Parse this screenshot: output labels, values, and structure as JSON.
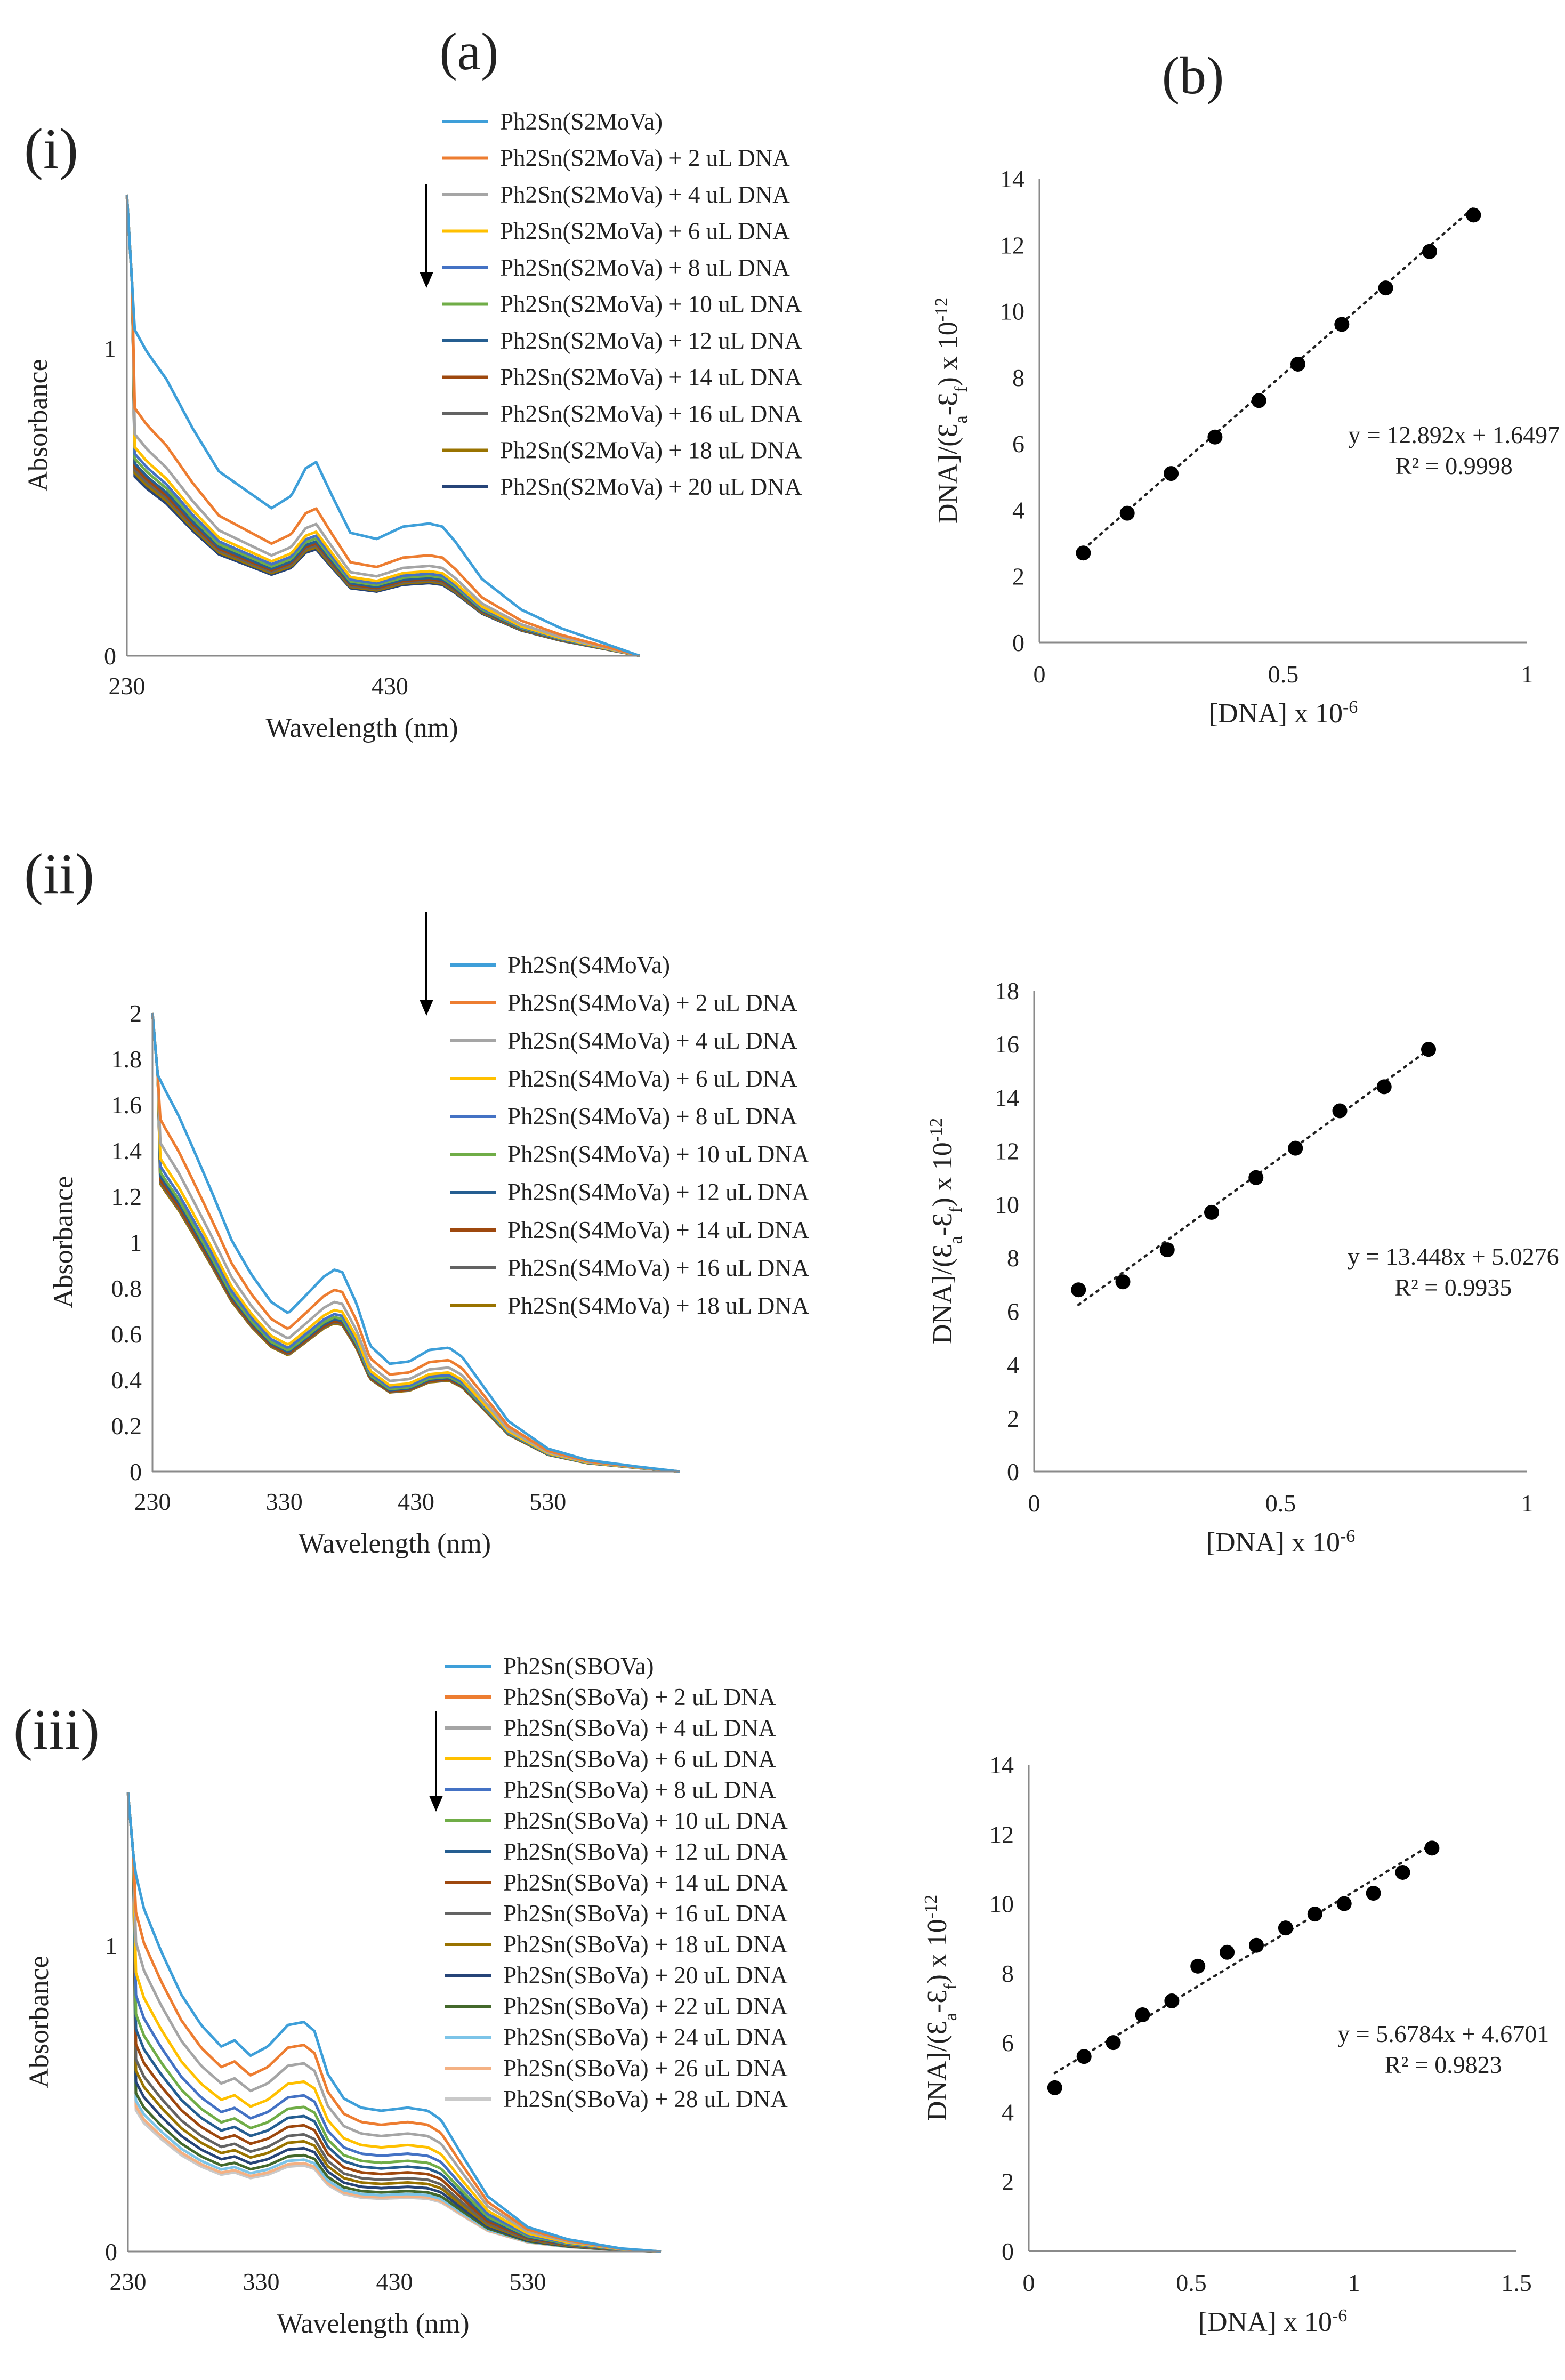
{
  "figure": {
    "col_a_label": "(a)",
    "col_b_label": "(b)",
    "row_labels": [
      "(i)",
      "(ii)",
      "(iii)"
    ]
  },
  "chart_data": [
    {
      "id": "i-a",
      "type": "line",
      "panel": "(i)(a)",
      "xlabel": "Wavelength (nm)",
      "ylabel": "Absorbance",
      "xlim": [
        230,
        620
      ],
      "ylim": [
        0,
        1.5
      ],
      "xticks": [
        230,
        430
      ],
      "yticks": [
        0,
        1
      ],
      "ytick_labels": [
        "0",
        "1"
      ],
      "legend_position": "top-right",
      "arrow": "down",
      "profile": {
        "x": [
          230,
          236,
          245,
          260,
          280,
          300,
          320,
          340,
          355,
          366,
          374,
          385,
          400,
          420,
          440,
          460,
          470,
          480,
          500,
          530,
          560,
          600,
          620
        ],
        "base": [
          1.5,
          1.06,
          0.99,
          0.9,
          0.74,
          0.6,
          0.54,
          0.48,
          0.52,
          0.61,
          0.63,
          0.53,
          0.4,
          0.38,
          0.42,
          0.43,
          0.42,
          0.37,
          0.25,
          0.15,
          0.09,
          0.03,
          0.0
        ]
      },
      "series": [
        {
          "name": "Ph2Sn(S2MoVa)",
          "color": "#3e9fd9",
          "scale": 1.0
        },
        {
          "name": "Ph2Sn(S2MoVa) + 2 uL DNA",
          "color": "#ed7d31",
          "scale": 0.76
        },
        {
          "name": "Ph2Sn(S2MoVa) + 4 uL DNA",
          "color": "#a5a5a5",
          "scale": 0.68
        },
        {
          "name": "Ph2Sn(S2MoVa) + 6 uL DNA",
          "color": "#ffc000",
          "scale": 0.64
        },
        {
          "name": "Ph2Sn(S2MoVa) + 8 uL DNA",
          "color": "#4472c4",
          "scale": 0.62
        },
        {
          "name": "Ph2Sn(S2MoVa) + 10 uL DNA",
          "color": "#70ad47",
          "scale": 0.605
        },
        {
          "name": "Ph2Sn(S2MoVa) + 12 uL DNA",
          "color": "#255e91",
          "scale": 0.59
        },
        {
          "name": "Ph2Sn(S2MoVa) + 14 uL DNA",
          "color": "#9e480e",
          "scale": 0.58
        },
        {
          "name": "Ph2Sn(S2MoVa) + 16 uL DNA",
          "color": "#636363",
          "scale": 0.57
        },
        {
          "name": "Ph2Sn(S2MoVa) + 18 uL DNA",
          "color": "#997300",
          "scale": 0.56
        },
        {
          "name": "Ph2Sn(S2MoVa) + 20 uL DNA",
          "color": "#264478",
          "scale": 0.55
        }
      ]
    },
    {
      "id": "i-b",
      "type": "scatter",
      "panel": "(i)(b)",
      "xlabel": "[DNA] x 10",
      "xlabel_sup": "-6",
      "ylabel_pre": "DNA]/(Ɛ",
      "ylabel_sub1": "a",
      "ylabel_mid": "-Ɛ",
      "ylabel_sub2": "f",
      "ylabel_post": ") x 10",
      "ylabel_sup": "-12",
      "xlim": [
        0,
        1
      ],
      "ylim": [
        0,
        14
      ],
      "xticks": [
        0,
        0.5,
        1
      ],
      "yticks": [
        0,
        2,
        4,
        6,
        8,
        10,
        12,
        14
      ],
      "x": [
        0.09,
        0.18,
        0.27,
        0.36,
        0.45,
        0.53,
        0.62,
        0.71,
        0.8,
        0.89
      ],
      "y": [
        2.7,
        3.9,
        5.1,
        6.2,
        7.3,
        8.4,
        9.6,
        10.7,
        11.8,
        12.9
      ],
      "trendline": {
        "slope": 12.892,
        "intercept": 1.6497,
        "x_range": [
          0.09,
          0.89
        ]
      },
      "equation": "y = 12.892x + 1.6497",
      "r2": "R² = 0.9998"
    },
    {
      "id": "ii-a",
      "type": "line",
      "panel": "(ii)(a)",
      "xlabel": "Wavelength (nm)",
      "ylabel": "Absorbance",
      "xlim": [
        230,
        630
      ],
      "ylim": [
        0,
        2
      ],
      "xticks": [
        230,
        330,
        430,
        530
      ],
      "yticks": [
        0,
        0.2,
        0.4,
        0.6,
        0.8,
        1,
        1.2,
        1.4,
        1.6,
        1.8,
        2
      ],
      "ytick_labels": [
        "0",
        "0.2",
        "0.4",
        "0.6",
        "0.8",
        "1",
        "1.2",
        "1.4",
        "1.6",
        "1.8",
        "2"
      ],
      "legend_position": "top-right",
      "arrow": "down",
      "profile": {
        "x": [
          230,
          234,
          240,
          250,
          260,
          275,
          290,
          305,
          320,
          333,
          345,
          360,
          368,
          374,
          385,
          395,
          410,
          425,
          440,
          455,
          465,
          480,
          500,
          530,
          560,
          600,
          630
        ],
        "base": [
          2.0,
          1.73,
          1.66,
          1.55,
          1.42,
          1.22,
          1.01,
          0.86,
          0.74,
          0.69,
          0.76,
          0.85,
          0.88,
          0.87,
          0.73,
          0.55,
          0.47,
          0.48,
          0.53,
          0.54,
          0.5,
          0.38,
          0.22,
          0.1,
          0.05,
          0.02,
          0.0
        ]
      },
      "series": [
        {
          "name": "Ph2Sn(S4MoVa)",
          "color": "#3e9fd9",
          "scale": 1.0
        },
        {
          "name": "Ph2Sn(S4MoVa) + 2 uL DNA",
          "color": "#ed7d31",
          "scale": 0.9
        },
        {
          "name": "Ph2Sn(S4MoVa) + 4 uL DNA",
          "color": "#a5a5a5",
          "scale": 0.84
        },
        {
          "name": "Ph2Sn(S4MoVa) + 6 uL DNA",
          "color": "#ffc000",
          "scale": 0.8
        },
        {
          "name": "Ph2Sn(S4MoVa) + 8 uL DNA",
          "color": "#4472c4",
          "scale": 0.78
        },
        {
          "name": "Ph2Sn(S4MoVa) + 10 uL DNA",
          "color": "#70ad47",
          "scale": 0.765
        },
        {
          "name": "Ph2Sn(S4MoVa) + 12 uL DNA",
          "color": "#255e91",
          "scale": 0.755
        },
        {
          "name": "Ph2Sn(S4MoVa) + 14 uL DNA",
          "color": "#9e480e",
          "scale": 0.745
        },
        {
          "name": "Ph2Sn(S4MoVa) + 16 uL DNA",
          "color": "#636363",
          "scale": 0.74
        },
        {
          "name": "Ph2Sn(S4MoVa) + 18 uL DNA",
          "color": "#997300",
          "scale": 0.735
        }
      ]
    },
    {
      "id": "ii-b",
      "type": "scatter",
      "panel": "(ii)(b)",
      "xlabel": "[DNA] x 10",
      "xlabel_sup": "-6",
      "ylabel_pre": "DNA]/(Ɛ",
      "ylabel_sub1": "a",
      "ylabel_mid": "-Ɛ",
      "ylabel_sub2": "f",
      "ylabel_post": ") x 10",
      "ylabel_sup": "-12",
      "xlim": [
        0,
        1
      ],
      "ylim": [
        0,
        18
      ],
      "xticks": [
        0,
        0.5,
        1
      ],
      "yticks": [
        0,
        2,
        4,
        6,
        8,
        10,
        12,
        14,
        16,
        18
      ],
      "x": [
        0.09,
        0.18,
        0.27,
        0.36,
        0.45,
        0.53,
        0.62,
        0.71,
        0.8
      ],
      "y": [
        6.8,
        7.1,
        8.3,
        9.7,
        11.0,
        12.1,
        13.5,
        14.4,
        15.8
      ],
      "trendline": {
        "slope": 13.448,
        "intercept": 5.0276,
        "x_range": [
          0.09,
          0.8
        ]
      },
      "equation": "y = 13.448x + 5.0276",
      "r2": "R² = 0.9935"
    },
    {
      "id": "iii-a",
      "type": "line",
      "panel": "(iii)(a)",
      "xlabel": "Wavelength (nm)",
      "ylabel": "Absorbance",
      "xlim": [
        230,
        630
      ],
      "ylim": [
        0,
        1.5
      ],
      "xticks": [
        230,
        330,
        430,
        530
      ],
      "yticks": [
        0,
        1
      ],
      "ytick_labels": [
        "0",
        "1"
      ],
      "legend_position": "top-right",
      "arrow": "down",
      "profile": {
        "x": [
          230,
          235,
          242,
          255,
          270,
          285,
          300,
          310,
          322,
          335,
          350,
          362,
          370,
          380,
          392,
          405,
          420,
          440,
          455,
          465,
          480,
          500,
          530,
          560,
          600,
          630
        ],
        "base": [
          1.5,
          1.25,
          1.12,
          0.98,
          0.84,
          0.74,
          0.67,
          0.69,
          0.64,
          0.67,
          0.74,
          0.75,
          0.72,
          0.58,
          0.5,
          0.47,
          0.46,
          0.47,
          0.46,
          0.43,
          0.32,
          0.18,
          0.08,
          0.04,
          0.01,
          0.0
        ]
      },
      "series": [
        {
          "name": "Ph2Sn(SBOVa)",
          "color": "#3e9fd9",
          "scale": 1.0
        },
        {
          "name": "Ph2Sn(SBoVa) + 2 uL DNA",
          "color": "#ed7d31",
          "scale": 0.9
        },
        {
          "name": "Ph2Sn(SBoVa) + 4 uL DNA",
          "color": "#a5a5a5",
          "scale": 0.82
        },
        {
          "name": "Ph2Sn(SBoVa) + 6 uL DNA",
          "color": "#ffc000",
          "scale": 0.74
        },
        {
          "name": "Ph2Sn(SBoVa) + 8 uL DNA",
          "color": "#4472c4",
          "scale": 0.68
        },
        {
          "name": "Ph2Sn(SBoVa) + 10 uL DNA",
          "color": "#70ad47",
          "scale": 0.63
        },
        {
          "name": "Ph2Sn(SBoVa) + 12 uL DNA",
          "color": "#255e91",
          "scale": 0.59
        },
        {
          "name": "Ph2Sn(SBoVa) + 14 uL DNA",
          "color": "#9e480e",
          "scale": 0.55
        },
        {
          "name": "Ph2Sn(SBoVa) + 16 uL DNA",
          "color": "#636363",
          "scale": 0.51
        },
        {
          "name": "Ph2Sn(SBoVa) + 18 uL DNA",
          "color": "#997300",
          "scale": 0.48
        },
        {
          "name": "Ph2Sn(SBoVa) + 20 uL DNA",
          "color": "#264478",
          "scale": 0.45
        },
        {
          "name": "Ph2Sn(SBoVa) + 22 uL DNA",
          "color": "#43682b",
          "scale": 0.42
        },
        {
          "name": "Ph2Sn(SBoVa) + 24 uL DNA",
          "color": "#7cc4e8",
          "scale": 0.4
        },
        {
          "name": "Ph2Sn(SBoVa) + 26 uL DNA",
          "color": "#f4b183",
          "scale": 0.385
        },
        {
          "name": "Ph2Sn(SBoVa) + 28 uL DNA",
          "color": "#c9c9c9",
          "scale": 0.375
        }
      ]
    },
    {
      "id": "iii-b",
      "type": "scatter",
      "panel": "(iii)(b)",
      "xlabel": "[DNA] x 10",
      "xlabel_sup": "-6",
      "ylabel_pre": "DNA]/(Ɛ",
      "ylabel_sub1": "a",
      "ylabel_mid": "-Ɛ",
      "ylabel_sub2": "f",
      "ylabel_post": ") x 10",
      "ylabel_sup": "-12",
      "xlim": [
        0,
        1.5
      ],
      "ylim": [
        0,
        14
      ],
      "xticks": [
        0,
        0.5,
        1,
        1.5
      ],
      "yticks": [
        0,
        2,
        4,
        6,
        8,
        10,
        12,
        14
      ],
      "x": [
        0.08,
        0.17,
        0.26,
        0.35,
        0.44,
        0.52,
        0.61,
        0.7,
        0.79,
        0.88,
        0.97,
        1.06,
        1.15,
        1.24
      ],
      "y": [
        4.7,
        5.6,
        6.0,
        6.8,
        7.2,
        8.2,
        8.6,
        8.8,
        9.3,
        9.7,
        10.0,
        10.3,
        10.9,
        11.6
      ],
      "trendline": {
        "slope": 5.6784,
        "intercept": 4.6701,
        "x_range": [
          0.08,
          1.24
        ]
      },
      "equation": "y = 5.6784x + 4.6701",
      "r2": "R² = 0.9823"
    }
  ]
}
